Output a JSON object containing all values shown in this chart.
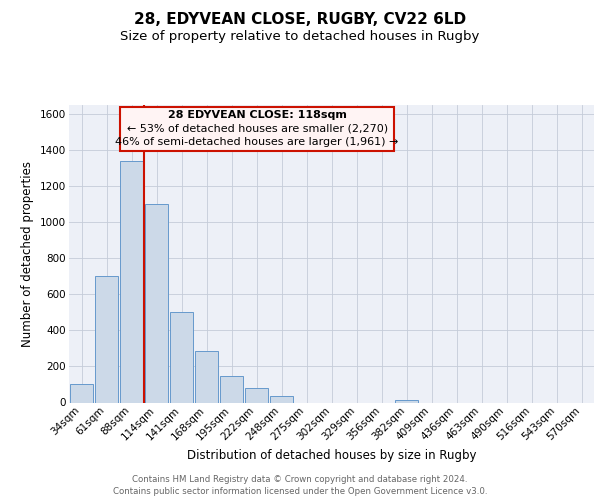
{
  "title": "28, EDYVEAN CLOSE, RUGBY, CV22 6LD",
  "subtitle": "Size of property relative to detached houses in Rugby",
  "xlabel": "Distribution of detached houses by size in Rugby",
  "ylabel": "Number of detached properties",
  "bar_labels": [
    "34sqm",
    "61sqm",
    "88sqm",
    "114sqm",
    "141sqm",
    "168sqm",
    "195sqm",
    "222sqm",
    "248sqm",
    "275sqm",
    "302sqm",
    "329sqm",
    "356sqm",
    "382sqm",
    "409sqm",
    "436sqm",
    "463sqm",
    "490sqm",
    "516sqm",
    "543sqm",
    "570sqm"
  ],
  "bar_values": [
    100,
    700,
    1340,
    1100,
    500,
    285,
    145,
    80,
    35,
    0,
    0,
    0,
    0,
    15,
    0,
    0,
    0,
    0,
    0,
    0,
    0
  ],
  "bar_color": "#ccd9e8",
  "bar_edgecolor": "#6699cc",
  "bar_linewidth": 0.7,
  "grid_color": "#c5ccd8",
  "background_color": "#edf0f7",
  "property_line_x": 2.48,
  "property_line_color": "#cc1100",
  "annotation_text_line1": "28 EDYVEAN CLOSE: 118sqm",
  "annotation_text_line2": "← 53% of detached houses are smaller (2,270)",
  "annotation_text_line3": "46% of semi-detached houses are larger (1,961) →",
  "annotation_bg_color": "#fff4f4",
  "annotation_border_color": "#cc1100",
  "ylim": [
    0,
    1650
  ],
  "yticks": [
    0,
    200,
    400,
    600,
    800,
    1000,
    1200,
    1400,
    1600
  ],
  "footer_line1": "Contains HM Land Registry data © Crown copyright and database right 2024.",
  "footer_line2": "Contains public sector information licensed under the Open Government Licence v3.0.",
  "title_fontsize": 11,
  "subtitle_fontsize": 9.5,
  "axis_label_fontsize": 8.5,
  "tick_fontsize": 7.5,
  "annotation_fontsize": 8,
  "footer_fontsize": 6.2
}
